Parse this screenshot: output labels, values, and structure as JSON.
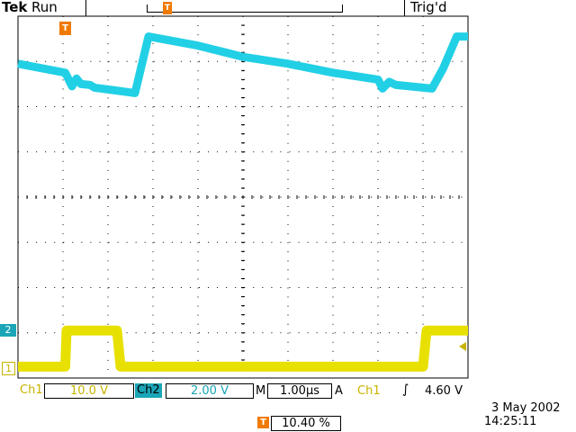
{
  "header": {
    "brand": "Tek",
    "acq_state": "Run",
    "trigger_status": "Trig'd",
    "record_marker": "T"
  },
  "channels": {
    "ch1": {
      "label": "Ch1",
      "scale": "10.0 V",
      "ground_marker": "1",
      "color": "#e8e000"
    },
    "ch2": {
      "label": "Ch2",
      "scale": "2.00 V",
      "ground_marker": "2",
      "color": "#22d0e6"
    }
  },
  "timebase": {
    "label": "M",
    "value": "1.00µs"
  },
  "trigger": {
    "mode": "A",
    "source": "Ch1",
    "slope_symbol": "∫",
    "level": "4.60 V",
    "position_marker": "T",
    "position": "10.40 %",
    "top_marker": "T"
  },
  "timestamp": {
    "date": "3 May 2002",
    "time": "14:25:11"
  },
  "colors": {
    "trigger": "#f07a00",
    "grid": "#000000",
    "background": "#ffffff"
  },
  "chart_data": {
    "type": "line",
    "x_units": "divisions",
    "y_units": "divisions",
    "xlim": [
      0,
      10
    ],
    "ylim": [
      0,
      8
    ],
    "grid": true,
    "series": [
      {
        "x": [
          0,
          1.05,
          1.2,
          1.3,
          1.4,
          1.6,
          1.7,
          2.6,
          2.9,
          4.0,
          5.0,
          6.0,
          7.0,
          8.0,
          8.1,
          8.25,
          8.4,
          9.2,
          9.45,
          9.75,
          10.0
        ],
        "y": [
          6.95,
          6.75,
          6.45,
          6.62,
          6.5,
          6.48,
          6.42,
          6.3,
          7.55,
          7.35,
          7.1,
          6.95,
          6.75,
          6.6,
          6.4,
          6.55,
          6.48,
          6.4,
          6.85,
          7.55,
          7.55
        ]
      },
      {
        "x": [
          0,
          1.05,
          1.08,
          2.2,
          2.28,
          9.0,
          9.08,
          10.0
        ],
        "y": [
          0.25,
          0.25,
          1.05,
          1.05,
          0.25,
          0.25,
          1.05,
          1.05
        ]
      }
    ]
  }
}
